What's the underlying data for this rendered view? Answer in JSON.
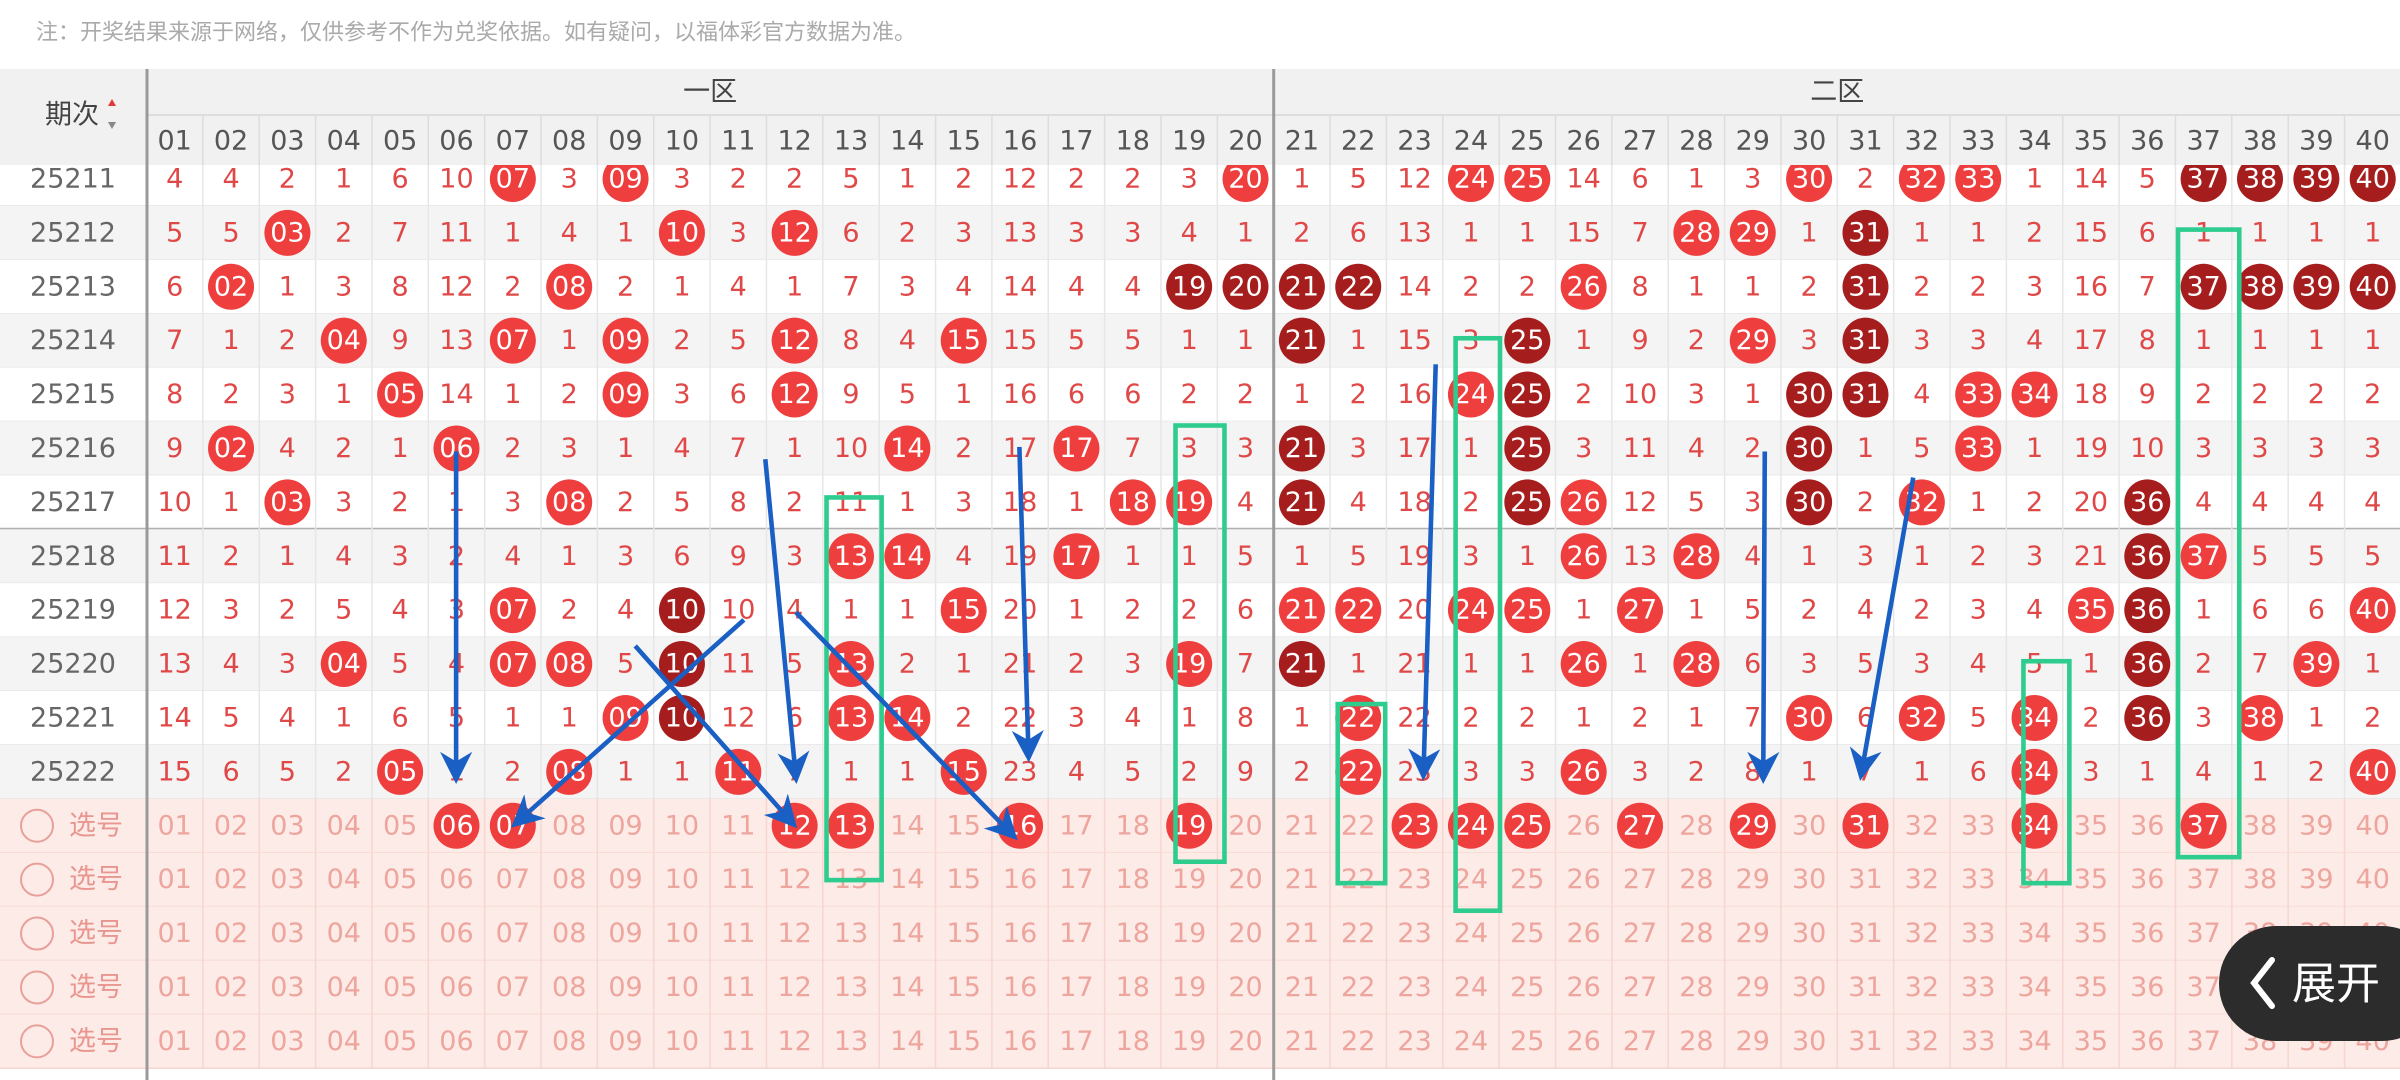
{
  "note": "注：开奖结果来源于网络，仅供参考不作为兑奖依据。如有疑问，以福体彩官方数据为准。",
  "header": {
    "corner": "期次",
    "zones": [
      "一区",
      "二区"
    ],
    "columns": [
      "01",
      "02",
      "03",
      "04",
      "05",
      "06",
      "07",
      "08",
      "09",
      "10",
      "11",
      "12",
      "13",
      "14",
      "15",
      "16",
      "17",
      "18",
      "19",
      "20",
      "21",
      "22",
      "23",
      "24",
      "25",
      "26",
      "27",
      "28",
      "29",
      "30",
      "31",
      "32",
      "33",
      "34",
      "35",
      "36",
      "37",
      "38",
      "39",
      "40"
    ]
  },
  "ball_colors": {
    "red": "#ee3e3e",
    "dark": "#a51d1d"
  },
  "rows": [
    {
      "issue": "25211",
      "cells": [
        "4",
        "4",
        "2",
        "1",
        "6",
        "10",
        {
          "text": "07",
          "ball": "red"
        },
        "3",
        {
          "text": "09",
          "ball": "red"
        },
        "3",
        "2",
        "2",
        "5",
        "1",
        "2",
        "12",
        "2",
        "2",
        "3",
        {
          "text": "20",
          "ball": "red"
        },
        "1",
        "5",
        "12",
        {
          "text": "24",
          "ball": "red"
        },
        {
          "text": "25",
          "ball": "red"
        },
        "14",
        "6",
        "1",
        "3",
        {
          "text": "30",
          "ball": "red"
        },
        "2",
        {
          "text": "32",
          "ball": "red"
        },
        {
          "text": "33",
          "ball": "red"
        },
        "1",
        "14",
        "5",
        {
          "text": "37",
          "ball": "dark"
        },
        {
          "text": "38",
          "ball": "dark"
        },
        {
          "text": "39",
          "ball": "dark"
        },
        {
          "text": "40",
          "ball": "dark"
        }
      ]
    },
    {
      "issue": "25212",
      "cells": [
        "5",
        "5",
        {
          "text": "03",
          "ball": "red"
        },
        "2",
        "7",
        "11",
        "1",
        "4",
        "1",
        {
          "text": "10",
          "ball": "red"
        },
        "3",
        {
          "text": "12",
          "ball": "red"
        },
        "6",
        "2",
        "3",
        "13",
        "3",
        "3",
        "4",
        "1",
        "2",
        "6",
        "13",
        "1",
        "1",
        "15",
        "7",
        {
          "text": "28",
          "ball": "red"
        },
        {
          "text": "29",
          "ball": "red"
        },
        "1",
        {
          "text": "31",
          "ball": "dark"
        },
        "1",
        "1",
        "2",
        "15",
        "6",
        "1",
        "1",
        "1",
        "1"
      ]
    },
    {
      "issue": "25213",
      "cells": [
        "6",
        {
          "text": "02",
          "ball": "red"
        },
        "1",
        "3",
        "8",
        "12",
        "2",
        {
          "text": "08",
          "ball": "red"
        },
        "2",
        "1",
        "4",
        "1",
        "7",
        "3",
        "4",
        "14",
        "4",
        "4",
        {
          "text": "19",
          "ball": "dark"
        },
        {
          "text": "20",
          "ball": "dark"
        },
        {
          "text": "21",
          "ball": "dark"
        },
        {
          "text": "22",
          "ball": "dark"
        },
        "14",
        "2",
        "2",
        {
          "text": "26",
          "ball": "red"
        },
        "8",
        "1",
        "1",
        "2",
        {
          "text": "31",
          "ball": "dark"
        },
        "2",
        "2",
        "3",
        "16",
        "7",
        {
          "text": "37",
          "ball": "dark"
        },
        {
          "text": "38",
          "ball": "dark"
        },
        {
          "text": "39",
          "ball": "dark"
        },
        {
          "text": "40",
          "ball": "dark"
        }
      ]
    },
    {
      "issue": "25214",
      "cells": [
        "7",
        "1",
        "2",
        {
          "text": "04",
          "ball": "red"
        },
        "9",
        "13",
        {
          "text": "07",
          "ball": "red"
        },
        "1",
        {
          "text": "09",
          "ball": "red"
        },
        "2",
        "5",
        {
          "text": "12",
          "ball": "red"
        },
        "8",
        "4",
        {
          "text": "15",
          "ball": "red"
        },
        "15",
        "5",
        "5",
        "1",
        "1",
        {
          "text": "21",
          "ball": "dark"
        },
        "1",
        "15",
        "3",
        {
          "text": "25",
          "ball": "dark"
        },
        "1",
        "9",
        "2",
        {
          "text": "29",
          "ball": "red"
        },
        "3",
        {
          "text": "31",
          "ball": "dark"
        },
        "3",
        "3",
        "4",
        "17",
        "8",
        "1",
        "1",
        "1",
        "1"
      ]
    },
    {
      "issue": "25215",
      "cells": [
        "8",
        "2",
        "3",
        "1",
        {
          "text": "05",
          "ball": "red"
        },
        "14",
        "1",
        "2",
        {
          "text": "09",
          "ball": "red"
        },
        "3",
        "6",
        {
          "text": "12",
          "ball": "red"
        },
        "9",
        "5",
        "1",
        "16",
        "6",
        "6",
        "2",
        "2",
        "1",
        "2",
        "16",
        {
          "text": "24",
          "ball": "red"
        },
        {
          "text": "25",
          "ball": "dark"
        },
        "2",
        "10",
        "3",
        "1",
        {
          "text": "30",
          "ball": "dark"
        },
        {
          "text": "31",
          "ball": "dark"
        },
        "4",
        {
          "text": "33",
          "ball": "red"
        },
        {
          "text": "34",
          "ball": "red"
        },
        "18",
        "9",
        "2",
        "2",
        "2",
        "2"
      ]
    },
    {
      "issue": "25216",
      "cells": [
        "9",
        {
          "text": "02",
          "ball": "red"
        },
        "4",
        "2",
        "1",
        {
          "text": "06",
          "ball": "red"
        },
        "2",
        "3",
        "1",
        "4",
        "7",
        "1",
        "10",
        {
          "text": "14",
          "ball": "red"
        },
        "2",
        "17",
        {
          "text": "17",
          "ball": "red"
        },
        "7",
        "3",
        "3",
        {
          "text": "21",
          "ball": "dark"
        },
        "3",
        "17",
        "1",
        {
          "text": "25",
          "ball": "dark"
        },
        "3",
        "11",
        "4",
        "2",
        {
          "text": "30",
          "ball": "dark"
        },
        "1",
        "5",
        {
          "text": "33",
          "ball": "red"
        },
        "1",
        "19",
        "10",
        "3",
        "3",
        "3",
        "3"
      ]
    },
    {
      "issue": "25217",
      "cells": [
        "10",
        "1",
        {
          "text": "03",
          "ball": "red"
        },
        "3",
        "2",
        "1",
        "3",
        {
          "text": "08",
          "ball": "red"
        },
        "2",
        "5",
        "8",
        "2",
        "11",
        "1",
        "3",
        "18",
        "1",
        {
          "text": "18",
          "ball": "red"
        },
        {
          "text": "19",
          "ball": "red"
        },
        "4",
        {
          "text": "21",
          "ball": "dark"
        },
        "4",
        "18",
        "2",
        {
          "text": "25",
          "ball": "dark"
        },
        {
          "text": "26",
          "ball": "red"
        },
        "12",
        "5",
        "3",
        {
          "text": "30",
          "ball": "dark"
        },
        "2",
        {
          "text": "32",
          "ball": "red"
        },
        "1",
        "2",
        "20",
        {
          "text": "36",
          "ball": "dark"
        },
        "4",
        "4",
        "4",
        "4"
      ]
    },
    {
      "issue": "25218",
      "cells": [
        "11",
        "2",
        "1",
        "4",
        "3",
        "2",
        "4",
        "1",
        "3",
        "6",
        "9",
        "3",
        {
          "text": "13",
          "ball": "red"
        },
        {
          "text": "14",
          "ball": "red"
        },
        "4",
        "19",
        {
          "text": "17",
          "ball": "red"
        },
        "1",
        "1",
        "5",
        "1",
        "5",
        "19",
        "3",
        "1",
        {
          "text": "26",
          "ball": "red"
        },
        "13",
        {
          "text": "28",
          "ball": "red"
        },
        "4",
        "1",
        "3",
        "1",
        "2",
        "3",
        "21",
        {
          "text": "36",
          "ball": "dark"
        },
        {
          "text": "37",
          "ball": "red"
        },
        "5",
        "5",
        "5"
      ]
    },
    {
      "issue": "25219",
      "cells": [
        "12",
        "3",
        "2",
        "5",
        "4",
        "3",
        {
          "text": "07",
          "ball": "red"
        },
        "2",
        "4",
        {
          "text": "10",
          "ball": "dark"
        },
        "10",
        "4",
        "1",
        "1",
        {
          "text": "15",
          "ball": "red"
        },
        "20",
        "1",
        "2",
        "2",
        "6",
        {
          "text": "21",
          "ball": "red"
        },
        {
          "text": "22",
          "ball": "red"
        },
        "20",
        {
          "text": "24",
          "ball": "red"
        },
        {
          "text": "25",
          "ball": "red"
        },
        "1",
        {
          "text": "27",
          "ball": "red"
        },
        "1",
        "5",
        "2",
        "4",
        "2",
        "3",
        "4",
        {
          "text": "35",
          "ball": "red"
        },
        {
          "text": "36",
          "ball": "dark"
        },
        "1",
        "6",
        "6",
        {
          "text": "40",
          "ball": "red"
        }
      ]
    },
    {
      "issue": "25220",
      "cells": [
        "13",
        "4",
        "3",
        {
          "text": "04",
          "ball": "red"
        },
        "5",
        "4",
        {
          "text": "07",
          "ball": "red"
        },
        {
          "text": "08",
          "ball": "red"
        },
        "5",
        {
          "text": "10",
          "ball": "dark"
        },
        "11",
        "5",
        {
          "text": "13",
          "ball": "red"
        },
        "2",
        "1",
        "21",
        "2",
        "3",
        {
          "text": "19",
          "ball": "red"
        },
        "7",
        {
          "text": "21",
          "ball": "dark"
        },
        "1",
        "21",
        "1",
        "1",
        {
          "text": "26",
          "ball": "red"
        },
        "1",
        {
          "text": "28",
          "ball": "red"
        },
        "6",
        "3",
        "5",
        "3",
        "4",
        "5",
        "1",
        {
          "text": "36",
          "ball": "dark"
        },
        "2",
        "7",
        {
          "text": "39",
          "ball": "red"
        },
        "1"
      ]
    },
    {
      "issue": "25221",
      "cells": [
        "14",
        "5",
        "4",
        "1",
        "6",
        "5",
        "1",
        "1",
        {
          "text": "09",
          "ball": "red"
        },
        {
          "text": "10",
          "ball": "dark"
        },
        "12",
        "6",
        {
          "text": "13",
          "ball": "red"
        },
        {
          "text": "14",
          "ball": "red"
        },
        "2",
        "22",
        "3",
        "4",
        "1",
        "8",
        "1",
        {
          "text": "22",
          "ball": "red"
        },
        "22",
        "2",
        "2",
        "1",
        "2",
        "1",
        "7",
        {
          "text": "30",
          "ball": "red"
        },
        "6",
        {
          "text": "32",
          "ball": "red"
        },
        "5",
        {
          "text": "34",
          "ball": "red"
        },
        "2",
        {
          "text": "36",
          "ball": "dark"
        },
        "3",
        {
          "text": "38",
          "ball": "red"
        },
        "1",
        "2"
      ]
    },
    {
      "issue": "25222",
      "cells": [
        "15",
        "6",
        "5",
        "2",
        {
          "text": "05",
          "ball": "red"
        },
        "1",
        "2",
        {
          "text": "08",
          "ball": "red"
        },
        "1",
        "1",
        {
          "text": "11",
          "ball": "red"
        },
        "7",
        "1",
        "1",
        {
          "text": "15",
          "ball": "red"
        },
        "23",
        "4",
        "5",
        "2",
        "9",
        "2",
        {
          "text": "22",
          "ball": "red"
        },
        "23",
        "3",
        "3",
        {
          "text": "26",
          "ball": "red"
        },
        "3",
        "2",
        "8",
        "1",
        "7",
        "1",
        "6",
        {
          "text": "34",
          "ball": "red"
        },
        "3",
        "1",
        "4",
        "1",
        "2",
        {
          "text": "40",
          "ball": "red"
        }
      ]
    }
  ],
  "select_rows": [
    {
      "label": "选号",
      "balls": [
        "06",
        "07",
        "12",
        "13",
        "16",
        "19",
        "23",
        "24",
        "25",
        "27",
        "29",
        "31",
        "34",
        "37"
      ]
    },
    {
      "label": "选号",
      "balls": []
    },
    {
      "label": "选号",
      "balls": []
    },
    {
      "label": "选号",
      "balls": []
    },
    {
      "label": "选号",
      "balls": []
    }
  ],
  "expand_button": "展开"
}
